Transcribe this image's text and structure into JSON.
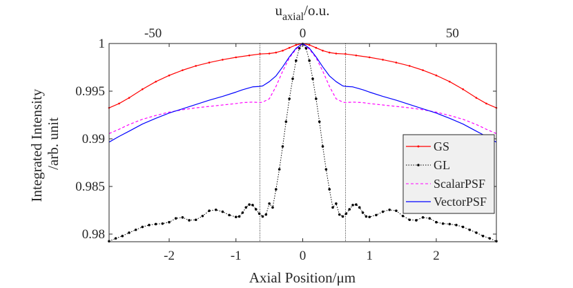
{
  "chart_data": {
    "type": "line",
    "xlabel": "Axial Position/μm",
    "ylabel_line1": "Integrated Intensity",
    "ylabel_line2": "/arb. unit",
    "top_xlabel_main": "u",
    "top_xlabel_sub": "axial",
    "top_xlabel_suffix": "/o.u.",
    "xlim": [
      -2.9,
      2.9
    ],
    "ylim": [
      0.9792,
      1.0
    ],
    "xticks": [
      -2,
      -1,
      0,
      1,
      2
    ],
    "xtick_labels": [
      "-2",
      "-1",
      "0",
      "1",
      "2"
    ],
    "yticks": [
      0.98,
      0.985,
      0.99,
      0.995,
      1.0
    ],
    "ytick_labels": [
      "0.98",
      "0.985",
      "0.99",
      "0.995",
      "1"
    ],
    "top_axis_units_per_um": 22.3,
    "top_xticks": [
      -50,
      0,
      50
    ],
    "top_xtick_labels": [
      "-50",
      "0",
      "50"
    ],
    "vlines": [
      -0.64,
      0.64
    ],
    "legend_position": "right",
    "series": [
      {
        "name": "GS",
        "color": "#ff0000",
        "dash": "solid",
        "marker": "dot",
        "x": [
          0,
          0.1,
          0.2,
          0.3,
          0.4,
          0.5,
          0.64,
          0.8,
          1.0,
          1.2,
          1.4,
          1.6,
          1.8,
          2.0,
          2.2,
          2.4,
          2.6,
          2.75,
          2.9
        ],
        "y": [
          1.0,
          0.99985,
          0.99955,
          0.99925,
          0.99905,
          0.99895,
          0.9989,
          0.99875,
          0.99855,
          0.9983,
          0.998,
          0.99765,
          0.9972,
          0.99665,
          0.996,
          0.9952,
          0.9943,
          0.9937,
          0.99325
        ]
      },
      {
        "name": "GL",
        "color": "#000000",
        "dash": "dotted",
        "marker": "dot",
        "x": [
          0,
          0.05,
          0.1,
          0.15,
          0.2,
          0.25,
          0.3,
          0.35,
          0.4,
          0.45,
          0.5,
          0.55,
          0.6,
          0.65,
          0.7,
          0.75,
          0.8,
          0.85,
          0.9,
          0.95,
          1.0,
          1.1,
          1.2,
          1.3,
          1.4,
          1.5,
          1.6,
          1.7,
          1.8,
          1.9,
          2.0,
          2.1,
          2.2,
          2.3,
          2.4,
          2.5,
          2.6,
          2.7,
          2.8,
          2.9
        ],
        "y": [
          0.99995,
          0.9995,
          0.9982,
          0.9963,
          0.9942,
          0.9918,
          0.9892,
          0.9868,
          0.9847,
          0.9828,
          0.9832,
          0.98205,
          0.98185,
          0.98215,
          0.9826,
          0.98305,
          0.9831,
          0.9828,
          0.98225,
          0.98185,
          0.9818,
          0.982,
          0.98235,
          0.98255,
          0.98245,
          0.9819,
          0.9815,
          0.98145,
          0.98175,
          0.98165,
          0.98125,
          0.9811,
          0.98105,
          0.98095,
          0.98075,
          0.98045,
          0.98015,
          0.9798,
          0.97955,
          0.97925
        ]
      },
      {
        "name": "ScalarPSF",
        "color": "#ff00ff",
        "dash": "dashed",
        "marker": "none",
        "x": [
          0,
          0.1,
          0.2,
          0.3,
          0.4,
          0.5,
          0.6,
          0.64,
          0.75,
          0.9,
          1.0,
          1.2,
          1.4,
          1.6,
          1.8,
          2.0,
          2.2,
          2.4,
          2.6,
          2.75,
          2.9
        ],
        "y": [
          1.0,
          0.9994,
          0.9985,
          0.9971,
          0.9955,
          0.9942,
          0.99385,
          0.9938,
          0.99385,
          0.9938,
          0.9937,
          0.99355,
          0.9934,
          0.99325,
          0.99305,
          0.9928,
          0.99245,
          0.99205,
          0.9915,
          0.991,
          0.99055
        ]
      },
      {
        "name": "VectorPSF",
        "color": "#0000ff",
        "dash": "solid",
        "marker": "none",
        "x": [
          0,
          0.1,
          0.2,
          0.3,
          0.4,
          0.5,
          0.6,
          0.64,
          0.75,
          0.9,
          1.0,
          1.2,
          1.4,
          1.6,
          1.8,
          2.0,
          2.2,
          2.4,
          2.6,
          2.75,
          2.9
        ],
        "y": [
          1.0,
          0.9995,
          0.9986,
          0.99755,
          0.9966,
          0.996,
          0.99555,
          0.9955,
          0.99545,
          0.99515,
          0.9949,
          0.99445,
          0.99405,
          0.9936,
          0.99315,
          0.9927,
          0.99215,
          0.99155,
          0.9908,
          0.99025,
          0.98965
        ]
      }
    ]
  }
}
